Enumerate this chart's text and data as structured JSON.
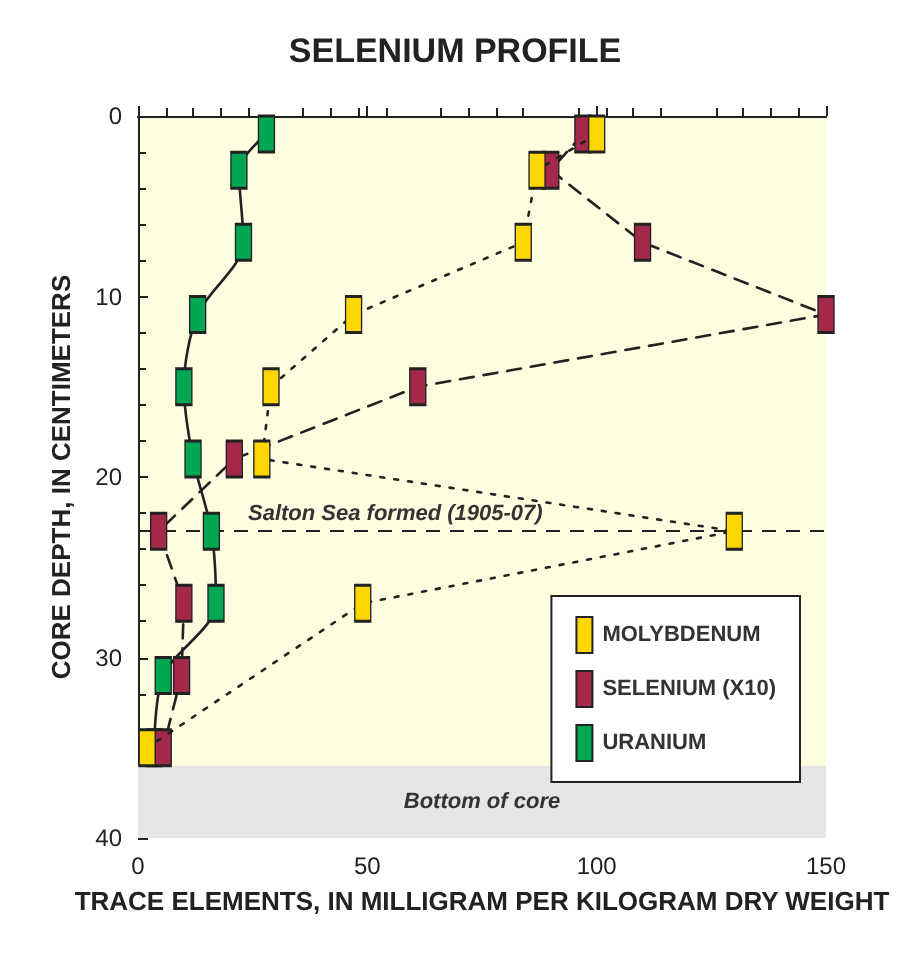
{
  "chart_data": {
    "type": "line",
    "orientation": "horizontal",
    "title": "SELENIUM PROFILE",
    "xlabel": "TRACE ELEMENTS, IN MILLIGRAM PER KILOGRAM DRY WEIGHT",
    "ylabel": "CORE DEPTH, IN CENTIMETERS",
    "x": [
      1,
      3,
      7,
      11,
      15,
      19,
      23,
      27,
      31,
      35
    ],
    "series": [
      {
        "name": "MOLYBDENUM",
        "color": "#ffd700",
        "line_style": "dotted",
        "values": [
          100,
          87,
          84,
          47,
          29,
          27,
          130,
          49,
          null,
          2
        ]
      },
      {
        "name": "SELENIUM (X10)",
        "color": "#a3284a",
        "line_style": "dashed",
        "values": [
          97,
          90,
          110,
          150,
          61,
          21,
          4.5,
          10,
          9.5,
          5.5
        ]
      },
      {
        "name": "URANIUM",
        "color": "#00a651",
        "line_style": "solid",
        "values": [
          28,
          22,
          23,
          13,
          10,
          12,
          16,
          17,
          5.5,
          3.5
        ]
      }
    ],
    "xlim": [
      0,
      150
    ],
    "xticks": [
      0,
      50,
      100,
      150
    ],
    "ylim": [
      40,
      0
    ],
    "yticks": [
      0,
      10,
      20,
      30,
      40
    ],
    "ref_lines": [
      {
        "axis": "y",
        "value": 23,
        "label": "Salton Sea formed (1905-07)",
        "line_style": "dashed"
      }
    ],
    "bands": [
      {
        "axis": "y",
        "from": 36,
        "to": 40,
        "label": "Bottom of core",
        "color": "#e6e6e6"
      }
    ],
    "marker": "square",
    "grid": false,
    "legend": "bottom right"
  }
}
